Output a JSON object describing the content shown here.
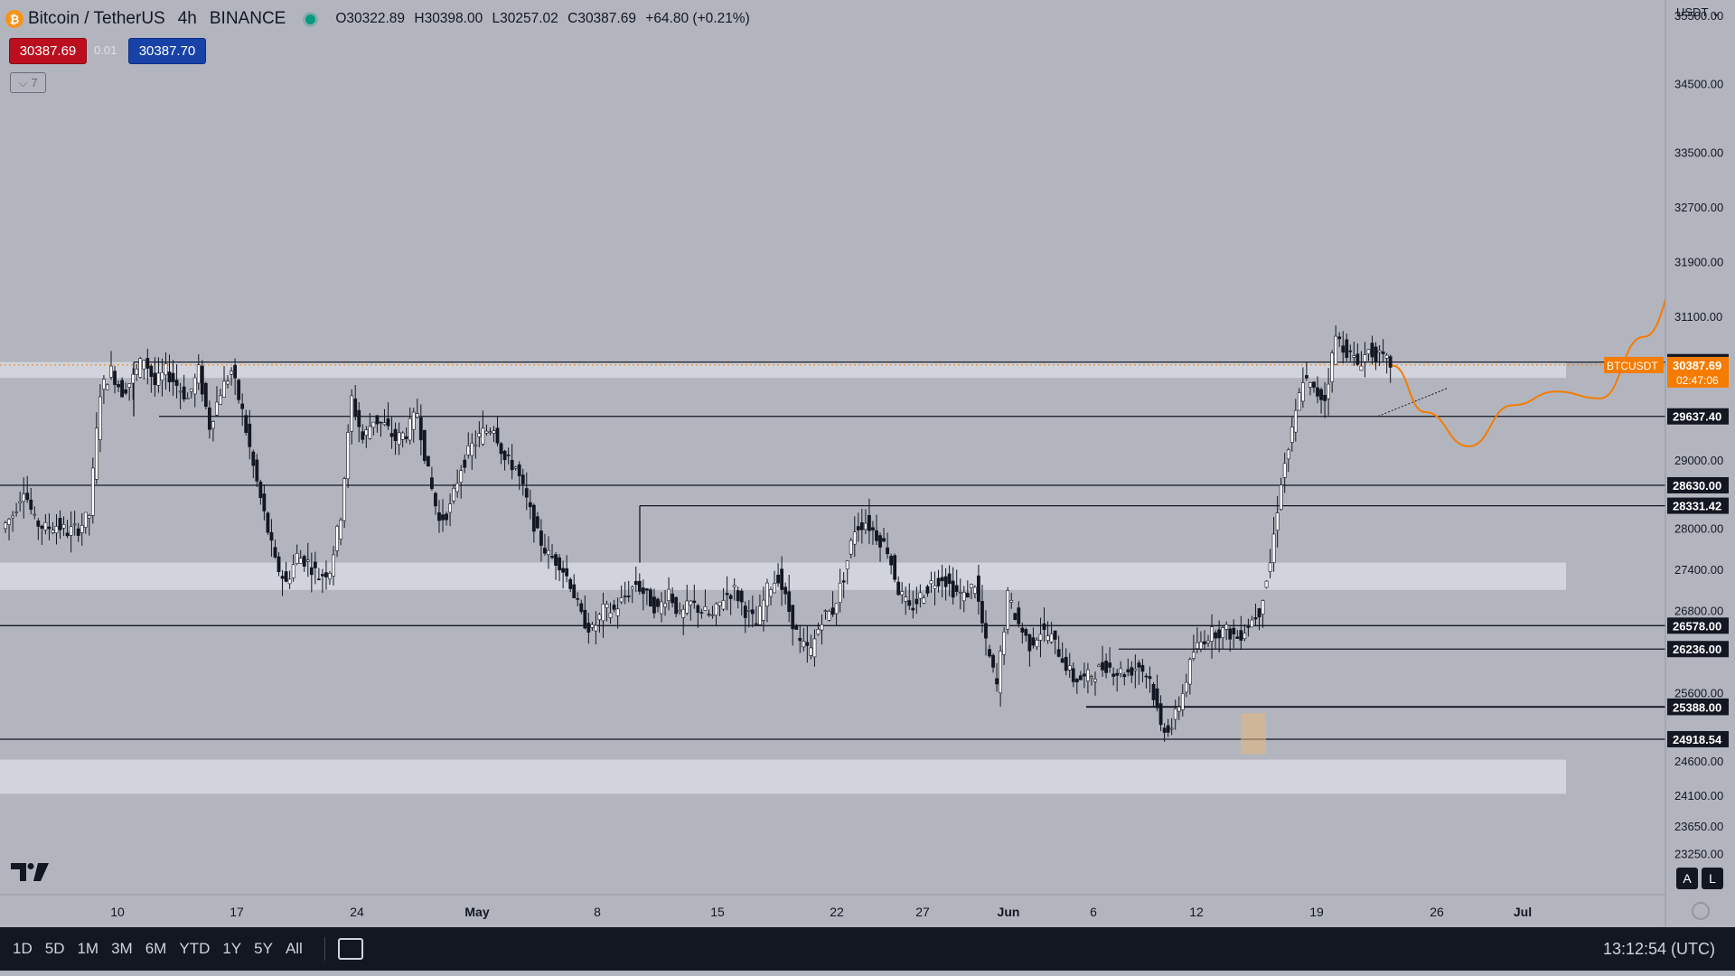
{
  "header": {
    "symbol": "Bitcoin / TetherUS",
    "interval": "4h",
    "exchange": "BINANCE",
    "ohlc": {
      "open": "O30322.89",
      "high": "H30398.00",
      "low": "L30257.02",
      "close": "C30387.69",
      "change": "+64.80 (+0.21%)"
    }
  },
  "bid": "30387.69",
  "spread": "0.01",
  "ask": "30387.70",
  "collapse_label": "7",
  "currency": "USDT",
  "scale_buttons": {
    "auto": "A",
    "log": "L"
  },
  "range_buttons": [
    "1D",
    "5D",
    "1M",
    "3M",
    "6M",
    "YTD",
    "1Y",
    "5Y",
    "All"
  ],
  "clock": "13:12:54 (UTC)",
  "colors": {
    "background": "#b2b5be",
    "candle_up": "#ffffff",
    "candle_down": "#131722",
    "wick": "#131722",
    "projection": "#f57c00",
    "zone": "#d1d4dc"
  },
  "chart_data": {
    "type": "candlestick",
    "price_axis": {
      "min": 23000,
      "max": 36300,
      "ticks": [
        "35500.00",
        "34500.00",
        "33500.00",
        "32700.00",
        "31900.00",
        "31100.00",
        "29000.00",
        "28000.00",
        "27400.00",
        "26800.00",
        "25600.00",
        "24600.00",
        "24100.00",
        "23650.00",
        "23250.00"
      ]
    },
    "time_axis": {
      "labels": [
        "10",
        "17",
        "24",
        "May",
        "8",
        "15",
        "22",
        "27",
        "Jun",
        "6",
        "12",
        "19",
        "26",
        "Jul"
      ]
    },
    "current_price": {
      "symbol": "BTCUSDT",
      "price": "30387.69",
      "countdown": "02:47:06"
    },
    "levels": [
      {
        "value": "30430.00",
        "x_start": "Apr 10",
        "style": "box"
      },
      {
        "value": "29637.40",
        "x_start": "Apr 11"
      },
      {
        "value": "28630.00",
        "x_start": "Apr 1"
      },
      {
        "value": "28331.42",
        "x_start": "May 10"
      },
      {
        "value": "26578.00",
        "x_start": "Apr 1"
      },
      {
        "value": "26236.00",
        "x_start": "Jun 8"
      },
      {
        "value": "25394.79",
        "x_start": "Jun 5"
      },
      {
        "value": "25388.00",
        "x_start": "Jun 5"
      },
      {
        "value": "24918.54",
        "x_start": "Apr 1"
      }
    ],
    "zones": [
      {
        "from": 30200,
        "to": 30430
      },
      {
        "from": 27100,
        "to": 27500
      },
      {
        "from": 24120,
        "to": 24620
      }
    ],
    "path": [
      [
        0,
        28000
      ],
      [
        1,
        28200
      ],
      [
        2,
        28600
      ],
      [
        3,
        28100
      ],
      [
        4,
        28000
      ],
      [
        5,
        28050
      ],
      [
        6,
        27950
      ],
      [
        7,
        28000
      ],
      [
        8,
        28200
      ],
      [
        9,
        30000
      ],
      [
        10,
        30300
      ],
      [
        11,
        30000
      ],
      [
        12,
        30200
      ],
      [
        13,
        30500
      ],
      [
        14,
        30100
      ],
      [
        15,
        30300
      ],
      [
        16,
        30100
      ],
      [
        17,
        29900
      ],
      [
        18,
        30300
      ],
      [
        19,
        29500
      ],
      [
        20,
        30000
      ],
      [
        21,
        30300
      ],
      [
        22,
        29700
      ],
      [
        23,
        28900
      ],
      [
        24,
        28200
      ],
      [
        25,
        27500
      ],
      [
        26,
        27200
      ],
      [
        27,
        27600
      ],
      [
        28,
        27500
      ],
      [
        29,
        27300
      ],
      [
        30,
        27400
      ],
      [
        31,
        28200
      ],
      [
        32,
        29900
      ],
      [
        33,
        29300
      ],
      [
        34,
        29600
      ],
      [
        35,
        29500
      ],
      [
        36,
        29300
      ],
      [
        37,
        29400
      ],
      [
        38,
        29700
      ],
      [
        39,
        28800
      ],
      [
        40,
        28100
      ],
      [
        41,
        28300
      ],
      [
        42,
        28900
      ],
      [
        43,
        29200
      ],
      [
        44,
        29400
      ],
      [
        45,
        29500
      ],
      [
        46,
        29000
      ],
      [
        47,
        28900
      ],
      [
        48,
        28400
      ],
      [
        49,
        27900
      ],
      [
        50,
        27600
      ],
      [
        51,
        27500
      ],
      [
        52,
        27200
      ],
      [
        53,
        26700
      ],
      [
        54,
        26500
      ],
      [
        55,
        26800
      ],
      [
        56,
        26800
      ],
      [
        57,
        27000
      ],
      [
        58,
        27200
      ],
      [
        59,
        27000
      ],
      [
        60,
        26800
      ],
      [
        61,
        27100
      ],
      [
        62,
        26700
      ],
      [
        63,
        26900
      ],
      [
        64,
        26800
      ],
      [
        65,
        26700
      ],
      [
        66,
        27000
      ],
      [
        67,
        27100
      ],
      [
        68,
        26800
      ],
      [
        69,
        26600
      ],
      [
        70,
        27100
      ],
      [
        71,
        27300
      ],
      [
        72,
        26800
      ],
      [
        73,
        26300
      ],
      [
        74,
        26200
      ],
      [
        75,
        26700
      ],
      [
        76,
        26800
      ],
      [
        77,
        27300
      ],
      [
        78,
        28000
      ],
      [
        79,
        28100
      ],
      [
        80,
        27900
      ],
      [
        81,
        27700
      ],
      [
        82,
        27100
      ],
      [
        83,
        26800
      ],
      [
        84,
        27000
      ],
      [
        85,
        27200
      ],
      [
        86,
        27300
      ],
      [
        87,
        27100
      ],
      [
        88,
        27000
      ],
      [
        89,
        27200
      ],
      [
        90,
        26300
      ],
      [
        91,
        25700
      ],
      [
        92,
        27000
      ],
      [
        93,
        26600
      ],
      [
        94,
        26300
      ],
      [
        95,
        26500
      ],
      [
        96,
        26400
      ],
      [
        97,
        26100
      ],
      [
        98,
        25800
      ],
      [
        99,
        25800
      ],
      [
        100,
        25900
      ],
      [
        101,
        26000
      ],
      [
        102,
        25900
      ],
      [
        103,
        25900
      ],
      [
        104,
        26000
      ],
      [
        105,
        25800
      ],
      [
        106,
        25100
      ],
      [
        107,
        25100
      ],
      [
        108,
        25600
      ],
      [
        109,
        26200
      ],
      [
        110,
        26400
      ],
      [
        111,
        26500
      ],
      [
        112,
        26500
      ],
      [
        113,
        26400
      ],
      [
        114,
        26600
      ],
      [
        115,
        26800
      ],
      [
        116,
        27500
      ],
      [
        117,
        28700
      ],
      [
        118,
        29400
      ],
      [
        119,
        30200
      ],
      [
        120,
        30000
      ],
      [
        121,
        29900
      ],
      [
        122,
        30800
      ],
      [
        123,
        30600
      ],
      [
        124,
        30400
      ],
      [
        125,
        30600
      ],
      [
        126,
        30500
      ],
      [
        127,
        30400
      ]
    ],
    "projection": [
      [
        127,
        30380
      ],
      [
        130,
        29700
      ],
      [
        134,
        29200
      ],
      [
        138,
        29800
      ],
      [
        142,
        30000
      ],
      [
        146,
        29900
      ],
      [
        150,
        30800
      ],
      [
        154,
        31900
      ]
    ]
  }
}
